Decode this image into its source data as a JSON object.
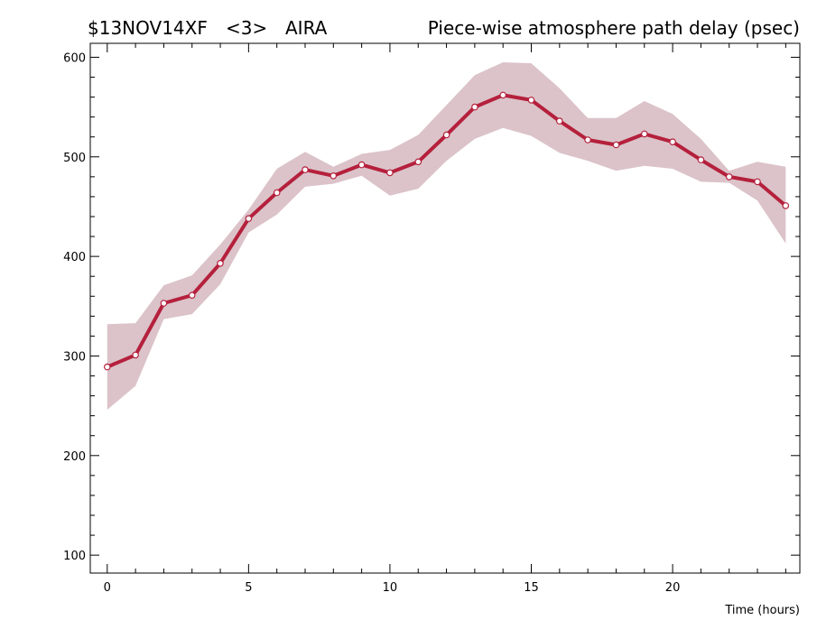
{
  "header": {
    "experiment": "$13NOV14XF",
    "index": "<3>",
    "station": "AIRA",
    "title": "Piece-wise atmosphere path delay (psec)"
  },
  "chart_data": {
    "type": "line",
    "xlabel": "Time (hours)",
    "ylabel": "",
    "xlim": [
      -0.6,
      24.5
    ],
    "ylim": [
      82,
      614
    ],
    "x_ticks": [
      0,
      5,
      10,
      15,
      20
    ],
    "y_ticks": [
      100,
      200,
      300,
      400,
      500,
      600
    ],
    "grid": false,
    "colors": {
      "line": "#b5203c",
      "band": "#dbc3c9",
      "marker_fill": "#ffffff"
    },
    "series": [
      {
        "x": [
          0,
          1,
          2,
          3,
          4,
          5,
          6,
          7,
          8,
          9,
          10,
          11,
          12,
          13,
          14,
          15,
          16,
          17,
          18,
          19,
          20,
          21,
          22,
          23,
          24
        ],
        "values": [
          289,
          301,
          353,
          361,
          393,
          438,
          464,
          487,
          481,
          492,
          484,
          495,
          522,
          550,
          562,
          557,
          536,
          517,
          512,
          523,
          515,
          497,
          480,
          475,
          451
        ],
        "upper": [
          332,
          333,
          371,
          381,
          412,
          447,
          488,
          505,
          490,
          503,
          507,
          522,
          552,
          582,
          595,
          594,
          569,
          539,
          539,
          556,
          543,
          518,
          486,
          495,
          490
        ],
        "lower": [
          246,
          270,
          337,
          342,
          372,
          424,
          442,
          470,
          473,
          481,
          461,
          468,
          496,
          518,
          529,
          521,
          504,
          496,
          486,
          491,
          488,
          475,
          474,
          456,
          413
        ]
      }
    ]
  }
}
